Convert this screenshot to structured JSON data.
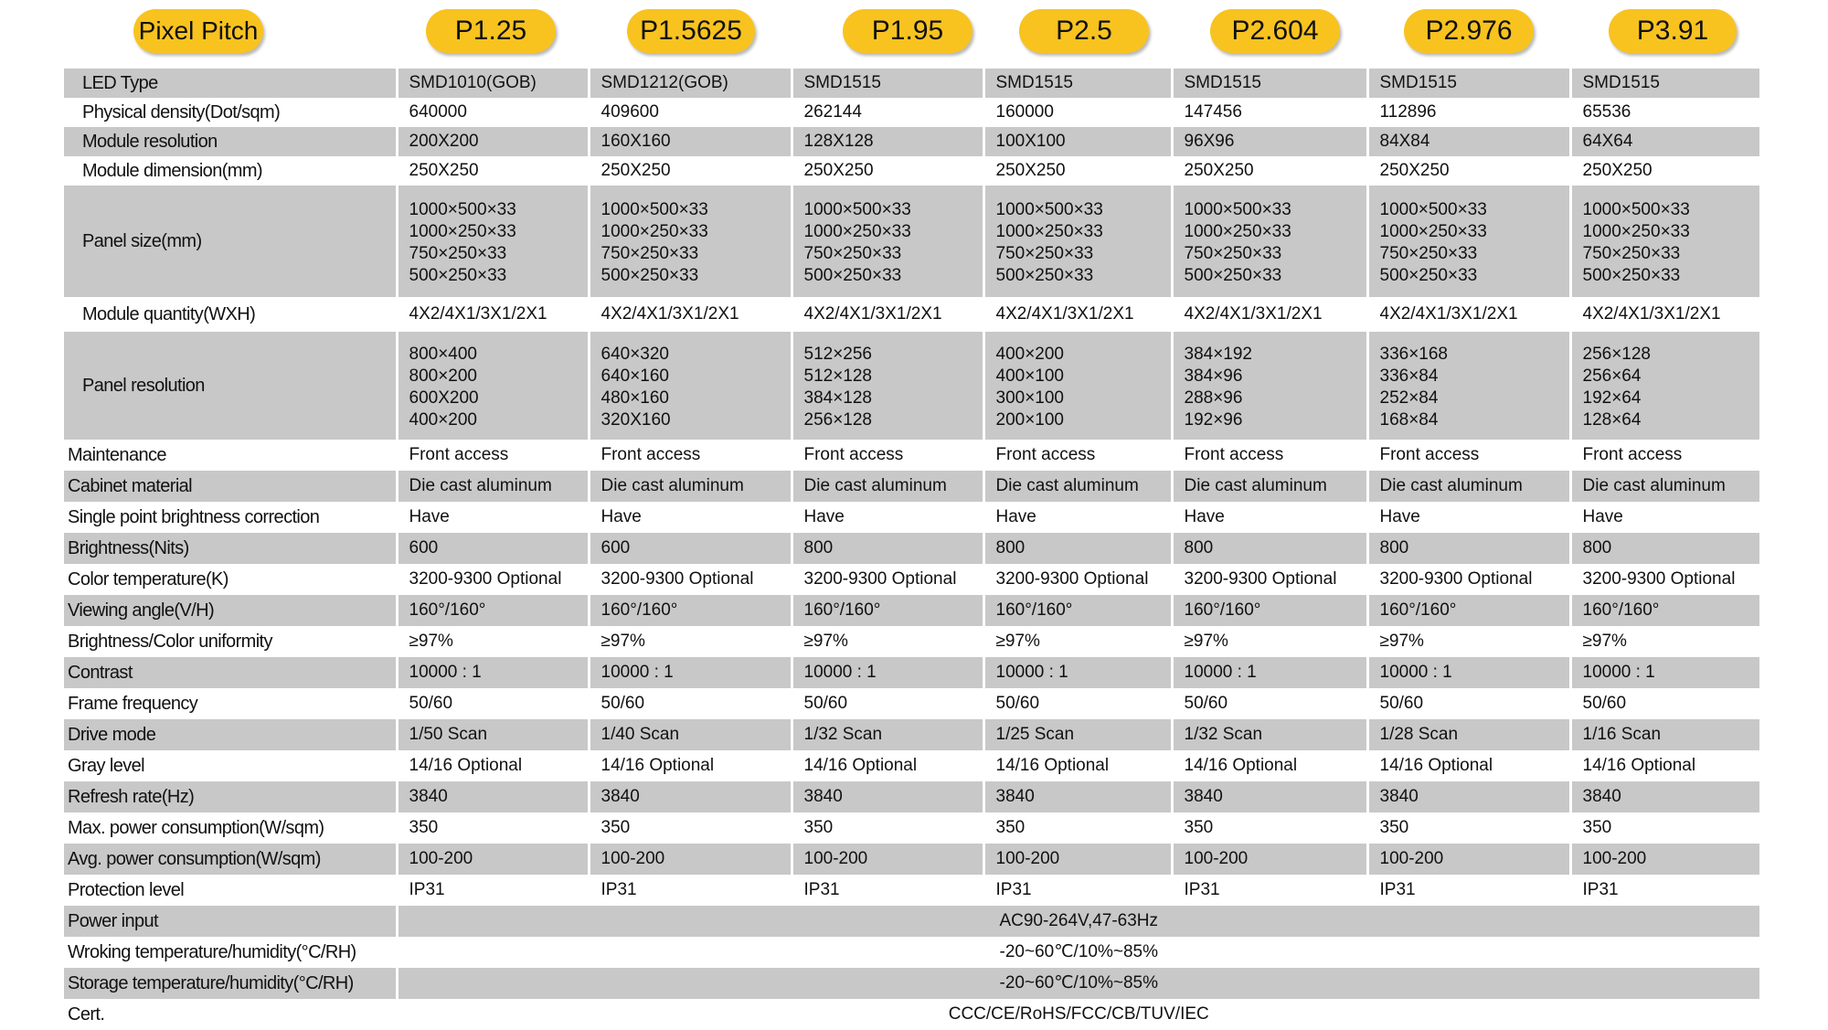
{
  "header": {
    "label": "Pixel Pitch",
    "models": [
      "P1.25",
      "P1.5625",
      "P1.95",
      "P2.5",
      "P2.604",
      "P2.976",
      "P3.91"
    ]
  },
  "rows": [
    {
      "label": "LED Type",
      "values": [
        "SMD1010(GOB)",
        "SMD1212(GOB)",
        "SMD1515",
        "SMD1515",
        "SMD1515",
        "SMD1515",
        "SMD1515"
      ]
    },
    {
      "label": "Physical density(Dot/sqm)",
      "values": [
        "640000",
        "409600",
        "262144",
        "160000",
        "147456",
        "112896",
        "65536"
      ]
    },
    {
      "label": "Module resolution",
      "values": [
        "200X200",
        "160X160",
        "128X128",
        "100X100",
        "96X96",
        "84X84",
        "64X64"
      ]
    },
    {
      "label": "Module dimension(mm)",
      "values": [
        "250X250",
        "250X250",
        "250X250",
        "250X250",
        "250X250",
        "250X250",
        "250X250"
      ]
    },
    {
      "label": "Panel size(mm)",
      "multiline": true,
      "values": [
        [
          "1000×500×33",
          "1000×250×33",
          "750×250×33",
          "500×250×33"
        ],
        [
          "1000×500×33",
          "1000×250×33",
          "750×250×33",
          "500×250×33"
        ],
        [
          "1000×500×33",
          "1000×250×33",
          "750×250×33",
          "500×250×33"
        ],
        [
          "1000×500×33",
          "1000×250×33",
          "750×250×33",
          "500×250×33"
        ],
        [
          "1000×500×33",
          "1000×250×33",
          "750×250×33",
          "500×250×33"
        ],
        [
          "1000×500×33",
          "1000×250×33",
          "750×250×33",
          "500×250×33"
        ],
        [
          "1000×500×33",
          "1000×250×33",
          "750×250×33",
          "500×250×33"
        ]
      ]
    },
    {
      "label": "Module quantity(WXH)",
      "values": [
        "4X2/4X1/3X1/2X1",
        "4X2/4X1/3X1/2X1",
        "4X2/4X1/3X1/2X1",
        "4X2/4X1/3X1/2X1",
        "4X2/4X1/3X1/2X1",
        "4X2/4X1/3X1/2X1",
        "4X2/4X1/3X1/2X1"
      ]
    },
    {
      "label": "Panel resolution",
      "multiline": true,
      "values": [
        [
          "800×400",
          "800×200",
          "600X200",
          "400×200"
        ],
        [
          "640×320",
          "640×160",
          "480×160",
          "320X160"
        ],
        [
          "512×256",
          "512×128",
          "384×128",
          "256×128"
        ],
        [
          "400×200",
          "400×100",
          "300×100",
          "200×100"
        ],
        [
          "384×192",
          "384×96",
          "288×96",
          "192×96"
        ],
        [
          "336×168",
          "336×84",
          "252×84",
          "168×84"
        ],
        [
          "256×128",
          "256×64",
          "192×64",
          "128×64"
        ]
      ]
    },
    {
      "label": "Maintenance",
      "values": [
        "Front access",
        "Front access",
        "Front access",
        "Front access",
        "Front access",
        "Front access",
        "Front access"
      ]
    },
    {
      "label": "Cabinet material",
      "values": [
        "Die cast aluminum",
        "Die cast aluminum",
        "Die cast aluminum",
        "Die cast aluminum",
        "Die cast aluminum",
        "Die cast aluminum",
        "Die cast aluminum"
      ]
    },
    {
      "label": "Single point brightness correction",
      "values": [
        "Have",
        "Have",
        "Have",
        "Have",
        "Have",
        "Have",
        "Have"
      ]
    },
    {
      "label": "Brightness(Nits)",
      "values": [
        "600",
        "600",
        "800",
        "800",
        "800",
        "800",
        "800"
      ]
    },
    {
      "label": "Color temperature(K)",
      "values": [
        "3200-9300 Optional",
        "3200-9300 Optional",
        "3200-9300 Optional",
        "3200-9300 Optional",
        "3200-9300 Optional",
        "3200-9300 Optional",
        "3200-9300 Optional"
      ]
    },
    {
      "label": "Viewing angle(V/H)",
      "values": [
        "160°/160°",
        "160°/160°",
        "160°/160°",
        "160°/160°",
        "160°/160°",
        "160°/160°",
        "160°/160°"
      ]
    },
    {
      "label": "Brightness/Color uniformity",
      "values": [
        "≥97%",
        "≥97%",
        "≥97%",
        "≥97%",
        "≥97%",
        "≥97%",
        "≥97%"
      ]
    },
    {
      "label": "Contrast",
      "values": [
        "10000 : 1",
        "10000 : 1",
        "10000 : 1",
        "10000 : 1",
        "10000 : 1",
        "10000 : 1",
        "10000 : 1"
      ]
    },
    {
      "label": "Frame frequency",
      "values": [
        "50/60",
        "50/60",
        "50/60",
        "50/60",
        "50/60",
        "50/60",
        "50/60"
      ]
    },
    {
      "label": "Drive mode",
      "values": [
        "1/50 Scan",
        "1/40 Scan",
        "1/32 Scan",
        "1/25 Scan",
        "1/32 Scan",
        "1/28 Scan",
        "1/16 Scan"
      ]
    },
    {
      "label": "Gray level",
      "values": [
        "14/16 Optional",
        "14/16 Optional",
        "14/16 Optional",
        "14/16 Optional",
        "14/16 Optional",
        "14/16 Optional",
        "14/16 Optional"
      ]
    },
    {
      "label": "Refresh rate(Hz)",
      "values": [
        "3840",
        "3840",
        "3840",
        "3840",
        "3840",
        "3840",
        "3840"
      ]
    },
    {
      "label": "Max. power consumption(W/sqm)",
      "values": [
        "350",
        "350",
        "350",
        "350",
        "350",
        "350",
        "350"
      ]
    },
    {
      "label": "Avg. power consumption(W/sqm)",
      "values": [
        "100-200",
        "100-200",
        "100-200",
        "100-200",
        "100-200",
        "100-200",
        "100-200"
      ]
    },
    {
      "label": "Protection level",
      "values": [
        "IP31",
        "IP31",
        "IP31",
        "IP31",
        "IP31",
        "IP31",
        "IP31"
      ]
    },
    {
      "label": "Power input",
      "span": "AC90-264V,47-63Hz"
    },
    {
      "label": "Wroking temperature/humidity(°C/RH)",
      "span": "-20~60℃/10%~85%"
    },
    {
      "label": "Storage  temperature/humidity(°C/RH)",
      "span": "-20~60℃/10%~85%"
    },
    {
      "label": "Cert.",
      "span": "CCC/CE/RoHS/FCC/CB/TUV/IEC"
    }
  ],
  "colors": {
    "pill": "#f8c31f",
    "shade": "#c8c8c8"
  }
}
